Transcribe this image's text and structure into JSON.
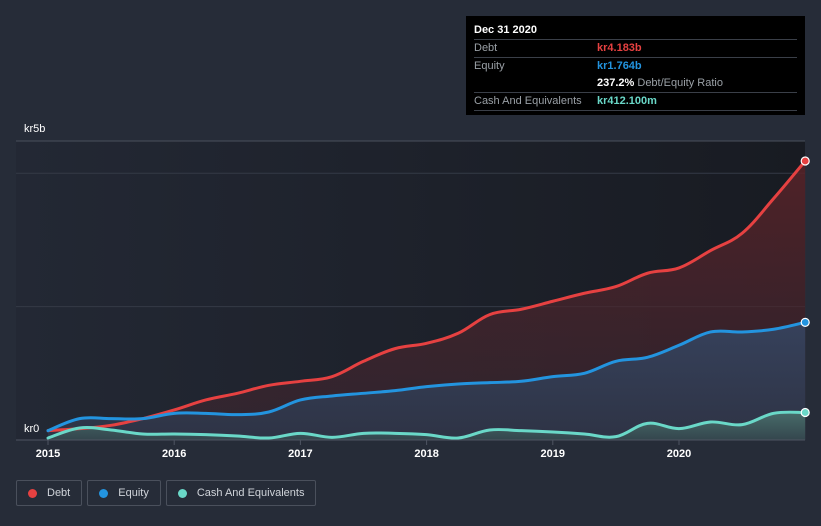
{
  "tooltip": {
    "date": "Dec 31 2020",
    "debt_label": "Debt",
    "debt_value": "kr4.183b",
    "equity_label": "Equity",
    "equity_value": "kr1.764b",
    "ratio_value": "237.2%",
    "ratio_label": "Debt/Equity Ratio",
    "cash_label": "Cash And Equivalents",
    "cash_value": "kr412.100m"
  },
  "legend": [
    {
      "label": "Debt",
      "color": "#e64141"
    },
    {
      "label": "Equity",
      "color": "#2394df"
    },
    {
      "label": "Cash And Equivalents",
      "color": "#6ad8c8"
    }
  ],
  "chart_data": {
    "type": "area",
    "title": "",
    "xlabel": "",
    "ylabel": "",
    "y_unit": "kr billions",
    "ylim": [
      0,
      4.5
    ],
    "xlim": [
      2014.75,
      2021.0
    ],
    "y_tick_labels": [
      {
        "value": 0,
        "label": "kr0"
      },
      {
        "value": 5,
        "label": "kr5b"
      }
    ],
    "gridlines": [
      2,
      4
    ],
    "x_ticks": [
      2015,
      2016,
      2017,
      2018,
      2019,
      2020
    ],
    "x_tick_labels": [
      "2015",
      "2016",
      "2017",
      "2018",
      "2019",
      "2020"
    ],
    "legend_position": "bottom-left",
    "x": [
      2015.0,
      2015.25,
      2015.5,
      2015.75,
      2016.0,
      2016.25,
      2016.5,
      2016.75,
      2017.0,
      2017.25,
      2017.5,
      2017.75,
      2018.0,
      2018.25,
      2018.5,
      2018.75,
      2019.0,
      2019.25,
      2019.5,
      2019.75,
      2020.0,
      2020.25,
      2020.5,
      2020.75,
      2021.0
    ],
    "series": [
      {
        "name": "Debt",
        "color": "#e64141",
        "values": [
          0.14,
          0.17,
          0.22,
          0.32,
          0.45,
          0.6,
          0.7,
          0.82,
          0.88,
          0.95,
          1.18,
          1.37,
          1.45,
          1.6,
          1.88,
          1.96,
          2.08,
          2.2,
          2.3,
          2.5,
          2.58,
          2.84,
          3.1,
          3.62,
          4.183
        ]
      },
      {
        "name": "Equity",
        "color": "#2394df",
        "values": [
          0.14,
          0.32,
          0.32,
          0.32,
          0.4,
          0.4,
          0.38,
          0.42,
          0.6,
          0.66,
          0.7,
          0.74,
          0.8,
          0.84,
          0.86,
          0.88,
          0.95,
          1.0,
          1.18,
          1.24,
          1.42,
          1.62,
          1.62,
          1.66,
          1.764
        ]
      },
      {
        "name": "Cash And Equivalents",
        "color": "#6ad8c8",
        "values": [
          0.03,
          0.18,
          0.15,
          0.09,
          0.09,
          0.08,
          0.06,
          0.03,
          0.1,
          0.04,
          0.1,
          0.1,
          0.08,
          0.03,
          0.15,
          0.14,
          0.12,
          0.09,
          0.05,
          0.25,
          0.17,
          0.27,
          0.23,
          0.4,
          0.412
        ]
      }
    ],
    "highlight": {
      "x": 2021.0,
      "label": "Dec 31 2020"
    }
  }
}
